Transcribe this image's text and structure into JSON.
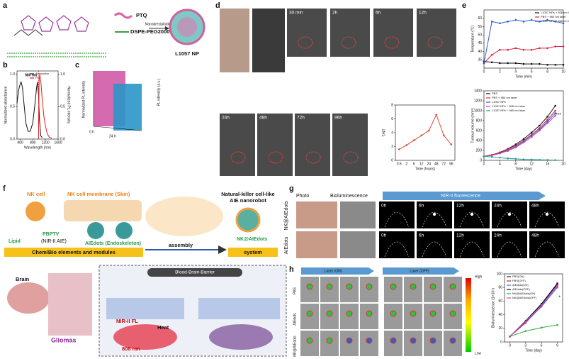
{
  "panel_labels": [
    "a",
    "b",
    "c",
    "d",
    "e",
    "f",
    "g",
    "h"
  ],
  "a": {
    "ptq": "PTQ",
    "dspe": "DSPE-PEG2000",
    "process": "Nanoprecipitation",
    "product": "L1057 NP"
  },
  "c": {
    "ylabel": "Normalized PL intensity",
    "zlabel": "PL intensity (a.u.)",
    "times": [
      "0 h",
      "24 h"
    ]
  },
  "d": {
    "times": [
      "30 min",
      "2h",
      "6h",
      "12h",
      "24h",
      "48h",
      "72h",
      "96h"
    ],
    "ylabel_note": ""
  },
  "f": {
    "nk_cell": "NK cell",
    "membrane": "NK cell membrane (Skin)",
    "nanorobot": [
      "Natural-killer cell-like",
      "AIE nanorobot"
    ],
    "lipid": "Lipid",
    "pbptv": "PBPTV",
    "nir": "(NIR-II AIE)",
    "aiedots": "AIEdots (Endoskeleton)",
    "nk_aiedots": "NK@AIEdots",
    "elements": "Chem/Bio elements and modules",
    "assembly": "assembly",
    "system": "system",
    "brain": "Brain",
    "gliomas": "Gliomas",
    "bbb": "Blood-Brain-Barrier",
    "nir_fl": "NIR-II FL",
    "laser": "808 nm",
    "heat": "Heat"
  },
  "g": {
    "headers": [
      "Photo",
      "Bioluminescence",
      "NIR-II fluorescence"
    ],
    "rows": [
      "NK@AIEdots",
      "AIEdots"
    ],
    "times": [
      "0h",
      "6h",
      "12h",
      "24h",
      "48h"
    ]
  },
  "h": {
    "laser_on": "Laser (ON)",
    "laser_off": "Laser (OFF)",
    "rows": [
      "PBS",
      "AIEdots",
      "NK@AIEdots"
    ],
    "high": "High",
    "low": "Low"
  },
  "chart_data": [
    {
      "type": "line",
      "xlabel": "Wavelength (nm)",
      "ylabel": "Normalized absorbance",
      "y2label": "Normalized PL intensity",
      "annotation": {
        "value": 980,
        "label": "980 nm"
      },
      "xlim": [
        300,
        1600
      ],
      "xticks": [
        400,
        800,
        1200,
        1600
      ],
      "ylim": [
        0,
        1.05
      ],
      "yticks": [
        {
          "value": 0,
          "label": "0.0"
        },
        {
          "value": 0.5,
          "label": "0.5"
        },
        {
          "value": 1,
          "label": "1.0"
        }
      ],
      "y2lim": [
        0,
        1.05
      ],
      "y2ticks": [
        {
          "value": 0,
          "label": "0.0"
        },
        {
          "value": 0.5,
          "label": "0.5"
        },
        {
          "value": 1,
          "label": "1.0"
        }
      ],
      "legend": "upper right",
      "markers": false,
      "series": [
        {
          "name": "Absorption",
          "color": "#111111",
          "x": [
            300,
            350,
            400,
            430,
            470,
            520,
            580,
            650,
            720,
            800,
            870,
            920,
            950,
            980,
            1010,
            1050,
            1100
          ],
          "values": [
            0.55,
            0.75,
            0.85,
            0.88,
            0.8,
            0.55,
            0.25,
            0.12,
            0.12,
            0.25,
            0.55,
            0.8,
            0.88,
            0.7,
            0.3,
            0.05,
            0.02
          ]
        },
        {
          "name": "PL",
          "color": "#e02020",
          "axis": "y2",
          "x": [
            980,
            1000,
            1020,
            1060,
            1100,
            1150,
            1200,
            1260,
            1320,
            1400
          ],
          "values": [
            0,
            0.9,
            1.0,
            0.85,
            0.6,
            0.35,
            0.2,
            0.08,
            0.03,
            0.01
          ]
        }
      ]
    },
    {
      "type": "line",
      "xlabel": "Time (hours)",
      "ylabel": "T/NT",
      "categories": [
        "0.5",
        "2",
        "6",
        "12",
        "24",
        "48",
        "72",
        "96"
      ],
      "ylim": [
        0,
        8
      ],
      "yticks": [
        0,
        2,
        4,
        6,
        8
      ],
      "markers": true,
      "series": [
        {
          "name": null,
          "color": "#d94a3a",
          "values": [
            1.6,
            2.2,
            2.9,
            3.6,
            4.3,
            6.6,
            3.6,
            2.3
          ]
        }
      ]
    },
    {
      "type": "line",
      "xlabel": "Time (min)",
      "ylabel": "Temperature (°C)",
      "x": [
        0,
        1,
        2,
        3,
        4,
        5,
        6,
        7,
        8,
        9,
        10
      ],
      "xlim": [
        0,
        10
      ],
      "xticks": [
        0,
        2,
        4,
        6,
        8,
        10
      ],
      "ylim": [
        30,
        65
      ],
      "yticks": [
        35,
        40,
        45,
        50,
        55,
        60
      ],
      "legend": "upper right",
      "markers": true,
      "series": [
        {
          "name": "L1057 NPs + 808 nm laser",
          "color": "#111111",
          "values": [
            34,
            33.5,
            33,
            33,
            33,
            32.5,
            32.5,
            32.5,
            32,
            32,
            32
          ]
        },
        {
          "name": "PBS + 980 nm laser",
          "color": "#e02040",
          "values": [
            33,
            38,
            41,
            41,
            42,
            41,
            41,
            42,
            42,
            43,
            43
          ]
        },
        {
          "name": "L1057 NPs + 980 nm laser",
          "color": "#2a5ad0",
          "values": [
            33,
            58,
            57,
            58,
            59,
            58,
            59,
            58,
            59,
            58,
            57
          ]
        }
      ]
    },
    {
      "type": "line",
      "xlabel": "Time (day)",
      "ylabel": "Tumour volume (mm³)",
      "annotation": "***",
      "x": [
        0,
        2,
        4,
        6,
        8,
        10,
        12,
        14,
        16,
        18
      ],
      "xlim": [
        0,
        20
      ],
      "xticks": [
        0,
        4,
        8,
        12,
        16,
        20
      ],
      "ylim": [
        0,
        1400
      ],
      "yticks": [
        0,
        200,
        400,
        600,
        800,
        1000,
        1200,
        1400
      ],
      "legend": "upper left",
      "markers": true,
      "series": [
        {
          "name": "PBS",
          "color": "#111111",
          "values": [
            80,
            110,
            160,
            230,
            320,
            430,
            560,
            700,
            880,
            1100
          ]
        },
        {
          "name": "PBS + 980 nm laser",
          "color": "#e02040",
          "values": [
            80,
            110,
            150,
            220,
            300,
            400,
            520,
            650,
            820,
            1000
          ]
        },
        {
          "name": "L1057 NPs",
          "color": "#2a5ad0",
          "values": [
            80,
            100,
            140,
            200,
            280,
            380,
            500,
            620,
            780,
            950
          ]
        },
        {
          "name": "L1057 NPs + 808 nm laser",
          "color": "#d040b0",
          "values": [
            80,
            100,
            140,
            190,
            260,
            360,
            470,
            600,
            750,
            900
          ]
        },
        {
          "name": "L1057 NPs + 980 nm laser",
          "color": "#20a090",
          "values": [
            80,
            70,
            55,
            40,
            30,
            20,
            15,
            10,
            8,
            5
          ]
        }
      ]
    },
    {
      "type": "line",
      "xlabel": "Time (day)",
      "ylabel": "Bioluminescence (1×10⁶)",
      "annotation": "*",
      "x": [
        0,
        3,
        6,
        9
      ],
      "xlim": [
        -1,
        10
      ],
      "xticks": [
        0,
        3,
        6,
        9
      ],
      "ylim": [
        0,
        100
      ],
      "yticks": [
        0,
        20,
        40,
        60,
        80,
        100
      ],
      "legend": "upper left",
      "markers": true,
      "series": [
        {
          "name": "PBS(ON)",
          "color": "#1a2a80",
          "values": [
            8,
            30,
            55,
            85
          ]
        },
        {
          "name": "PBS(OFF)",
          "color": "#e02020",
          "values": [
            8,
            28,
            53,
            83
          ]
        },
        {
          "name": "AIEdots(ON)",
          "color": "#3a6ae0",
          "values": [
            8,
            29,
            52,
            80
          ]
        },
        {
          "name": "AIEdots(OFF)",
          "color": "#111111",
          "values": [
            8,
            31,
            56,
            86
          ]
        },
        {
          "name": "NK@AIEdots(ON)",
          "color": "#30b040",
          "values": [
            8,
            16,
            21,
            25
          ]
        },
        {
          "name": "NK@AIEdots(OFF)",
          "color": "#e040a0",
          "values": [
            8,
            30,
            54,
            82
          ]
        }
      ]
    }
  ]
}
